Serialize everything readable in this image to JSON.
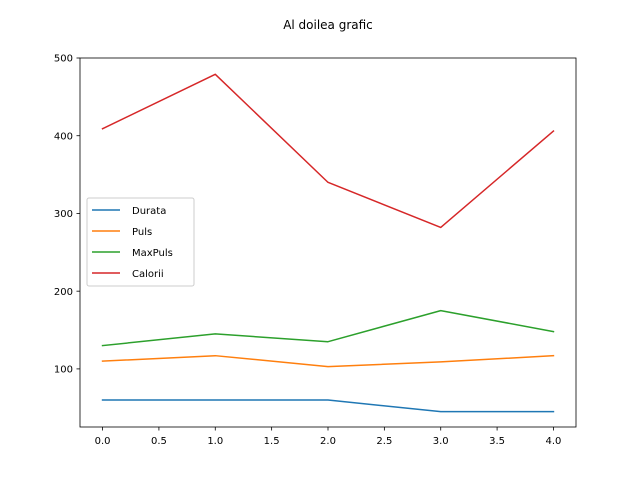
{
  "chart_data": {
    "type": "line",
    "title": "Al doilea grafic",
    "xlabel": "",
    "ylabel": "",
    "x": [
      0.0,
      1.0,
      2.0,
      3.0,
      4.0
    ],
    "xlim": [
      -0.2,
      4.2
    ],
    "ylim": [
      25.25,
      500
    ],
    "x_ticks": [
      0.0,
      0.5,
      1.0,
      1.5,
      2.0,
      2.5,
      3.0,
      3.5,
      4.0
    ],
    "x_tick_labels": [
      "0.0",
      "0.5",
      "1.0",
      "1.5",
      "2.0",
      "2.5",
      "3.0",
      "3.5",
      "4.0"
    ],
    "y_ticks": [
      100,
      200,
      300,
      400,
      500
    ],
    "y_tick_labels": [
      "100",
      "200",
      "300",
      "400",
      "500"
    ],
    "grid": false,
    "legend_position": "center-left",
    "series": [
      {
        "name": "Durata",
        "color": "#1f77b4",
        "values": [
          60,
          60,
          60,
          45,
          45
        ]
      },
      {
        "name": "Puls",
        "color": "#ff7f0e",
        "values": [
          110,
          117,
          103,
          109,
          117
        ]
      },
      {
        "name": "MaxPuls",
        "color": "#2ca02c",
        "values": [
          130,
          145,
          135,
          175,
          148
        ]
      },
      {
        "name": "Calorii",
        "color": "#d62728",
        "values": [
          409,
          479,
          340,
          282,
          406
        ]
      }
    ]
  }
}
